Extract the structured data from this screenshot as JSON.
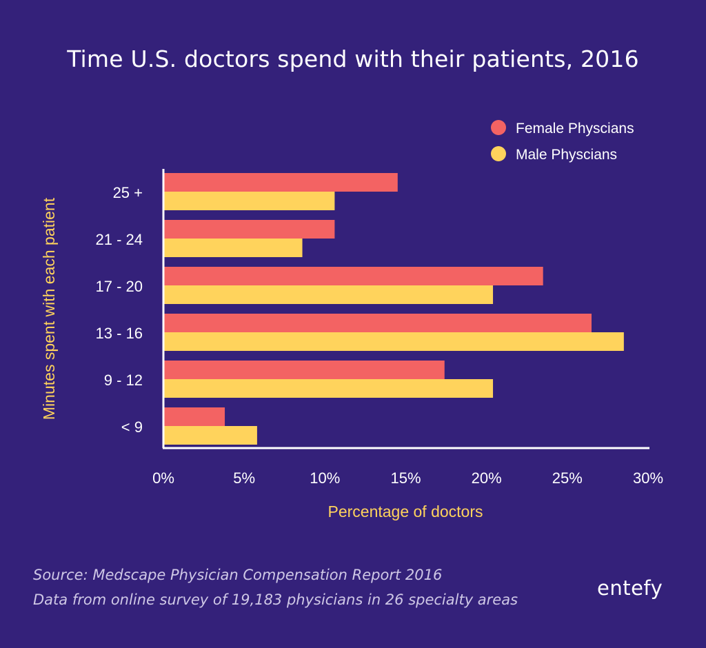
{
  "chart_data": {
    "type": "bar",
    "orientation": "horizontal",
    "title": "Time U.S. doctors spend with their patients, 2016",
    "xlabel": "Percentage of doctors",
    "ylabel": "Minutes spent with each patient",
    "categories": [
      "25 +",
      "21 - 24",
      "17 - 20",
      "13 - 16",
      "9 - 12",
      "< 9"
    ],
    "x_ticks": [
      "0%",
      "5%",
      "10%",
      "15%",
      "20%",
      "25%",
      "30%"
    ],
    "xlim": [
      0,
      30
    ],
    "grid": false,
    "legend_position": "top-right",
    "series": [
      {
        "name": "Female Physcians",
        "color": "#f36363",
        "values": [
          14.5,
          10.6,
          23.5,
          26.5,
          17.4,
          3.8
        ]
      },
      {
        "name": "Male Physcians",
        "color": "#ffd35c",
        "values": [
          10.6,
          8.6,
          20.4,
          28.5,
          20.4,
          5.8
        ]
      }
    ]
  },
  "footer": {
    "source_line1": "Source: Medscape Physician Compensation Report 2016",
    "source_line2": "Data from online survey of 19,183 physicians in 26 specialty areas",
    "logo": "entefy"
  }
}
